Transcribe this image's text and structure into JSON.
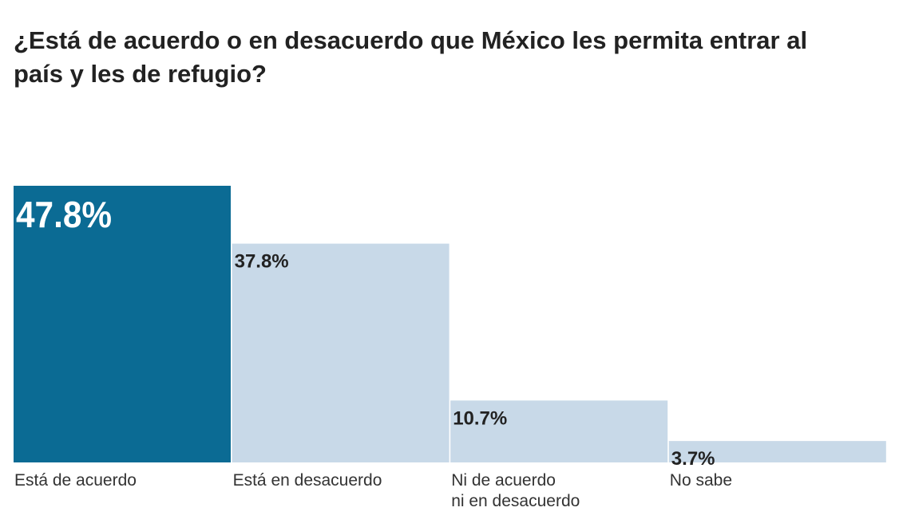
{
  "chart_data": {
    "type": "bar",
    "title": "¿Está de acuerdo o en desacuerdo que México les permita entrar al país y les de refugio?",
    "categories": [
      "Está de acuerdo",
      "Está en desacuerdo",
      "Ni de acuerdo\nni en desacuerdo",
      "No sabe"
    ],
    "values": [
      47.8,
      37.8,
      10.7,
      3.7
    ],
    "data_labels": [
      "47.8%",
      "37.8%",
      "10.7%",
      "3.7%"
    ],
    "xlabel": "",
    "ylabel": "",
    "ylim": [
      0,
      47.8
    ],
    "grid": false,
    "legend": "none",
    "colors": {
      "highlight": "#0b6b94",
      "default": "#c8d9e8",
      "highlight_label": "#ffffff",
      "default_label": "#222222"
    }
  }
}
